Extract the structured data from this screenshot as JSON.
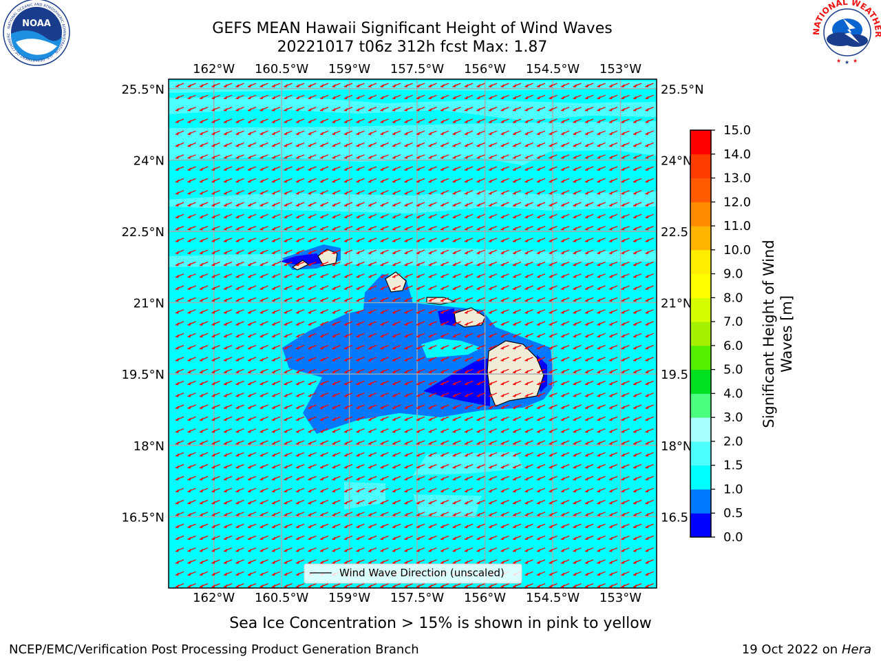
{
  "title": {
    "line1": "GEFS MEAN Hawaii Significant Height of Wind Waves",
    "line2": "20221017 t06z 312h fcst   Max: 1.87"
  },
  "logos": {
    "noaa": {
      "text": "NOAA",
      "ring_text": "NATIONAL OCEANIC AND ATMOSPHERIC ADMINISTRATION · U.S. DEPARTMENT OF COMMERCE"
    },
    "nws": {
      "ring_text": "NATIONAL WEATHER SERVICE"
    }
  },
  "map": {
    "lon_range": [
      -163.0,
      -152.2
    ],
    "lat_range": [
      15.0,
      25.7
    ],
    "lon_ticks": [
      {
        "value": -162.0,
        "label": "162°W"
      },
      {
        "value": -160.5,
        "label": "160.5°W"
      },
      {
        "value": -159.0,
        "label": "159°W"
      },
      {
        "value": -157.5,
        "label": "157.5°W"
      },
      {
        "value": -156.0,
        "label": "156°W"
      },
      {
        "value": -154.5,
        "label": "154.5°W"
      },
      {
        "value": -153.0,
        "label": "153°W"
      }
    ],
    "lat_ticks": [
      {
        "value": 25.5,
        "label": "25.5°N",
        "right": "25.5°N"
      },
      {
        "value": 24.0,
        "label": "24°N",
        "right": "24°N"
      },
      {
        "value": 22.5,
        "label": "22.5°N",
        "right": "22.5"
      },
      {
        "value": 21.0,
        "label": "21°N",
        "right": "21°N"
      },
      {
        "value": 19.5,
        "label": "19.5°N",
        "right": "19.5"
      },
      {
        "value": 18.0,
        "label": "18°N",
        "right": "18°N"
      },
      {
        "value": 16.5,
        "label": "16.5°N",
        "right": "16.5"
      }
    ],
    "grid": true,
    "field_colors": {
      "background": "#00ffff",
      "band_1_5_2_0": "#4dffff",
      "band_0_5_1_0": "#0078ff",
      "band_0_0_0_5": "#0000ff",
      "land": "#f0ecd8"
    },
    "arrow_color": "#ff0000",
    "legend": {
      "label": "Wind Wave Direction (unscaled)",
      "placement": "bottom-center"
    }
  },
  "colorbar": {
    "label_line1": "Significant Height of Wind",
    "label_line2": "Waves [m]",
    "ticks": [
      "0.0",
      "0.5",
      "1.0",
      "1.5",
      "2.0",
      "3.0",
      "4.0",
      "5.0",
      "6.0",
      "7.0",
      "8.0",
      "9.0",
      "10.0",
      "11.0",
      "12.0",
      "13.0",
      "14.0",
      "15.0"
    ],
    "colors": [
      "#0000ff",
      "#0078ff",
      "#00ffff",
      "#4dffff",
      "#aaffff",
      "#4dff80",
      "#00e020",
      "#55ee00",
      "#a5f000",
      "#d5ff00",
      "#ffff00",
      "#ffee00",
      "#ffb400",
      "#ff8c00",
      "#ff5a00",
      "#ff3c00",
      "#ff0000"
    ]
  },
  "caption": "Sea Ice Concentration > 15% is shown in pink to yellow",
  "footer": {
    "left": "NCEP/EMC/Verification Post Processing Product Generation Branch",
    "right_prefix": "19 Oct 2022 on ",
    "right_italic": "Hera"
  }
}
